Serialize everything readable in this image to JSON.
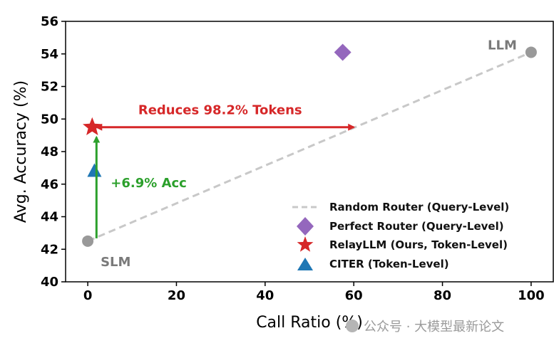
{
  "chart_data": {
    "type": "scatter",
    "xlabel": "Call Ratio (%)",
    "ylabel": "Avg. Accuracy (%)",
    "xlim": [
      -5,
      105
    ],
    "ylim": [
      40,
      56
    ],
    "xticks": [
      0,
      20,
      40,
      60,
      80,
      100
    ],
    "yticks": [
      40,
      42,
      44,
      46,
      48,
      50,
      52,
      54,
      56
    ],
    "grid": false,
    "legend_position": "lower-right",
    "series": [
      {
        "name": "Random Router (Query-Level)",
        "kind": "line",
        "style": "dashed",
        "color": "#c8c8c8",
        "points": [
          {
            "x": 0,
            "y": 42.5
          },
          {
            "x": 100,
            "y": 54.1
          }
        ]
      },
      {
        "name": "Perfect Router (Query-Level)",
        "marker": "diamond",
        "color": "#9467bd",
        "points": [
          {
            "x": 57.5,
            "y": 54.1
          }
        ]
      },
      {
        "name": "RelayLLM (Ours, Token-Level)",
        "marker": "star",
        "color": "#d62728",
        "points": [
          {
            "x": 1,
            "y": 49.5
          }
        ]
      },
      {
        "name": "CITER (Token-Level)",
        "marker": "triangle",
        "color": "#1f77b4",
        "points": [
          {
            "x": 1.5,
            "y": 46.8
          }
        ]
      }
    ],
    "endpoints": [
      {
        "label": "SLM",
        "x": 0,
        "y": 42.5,
        "color": "#999999"
      },
      {
        "label": "LLM",
        "x": 100,
        "y": 54.1,
        "color": "#999999"
      }
    ],
    "annotations": [
      {
        "text": "Reduces 98.2% Tokens",
        "color": "#d62728",
        "arrow_from": {
          "x": 1,
          "y": 49.5
        },
        "arrow_to": {
          "x": 60,
          "y": 49.5
        }
      },
      {
        "text": "+6.9% Acc",
        "color": "#2ca02c",
        "arrow_from": {
          "x": 1,
          "y": 42.5
        },
        "arrow_to": {
          "x": 1,
          "y": 49.5
        }
      }
    ]
  },
  "watermark": "公众号 · 大模型最新论文"
}
